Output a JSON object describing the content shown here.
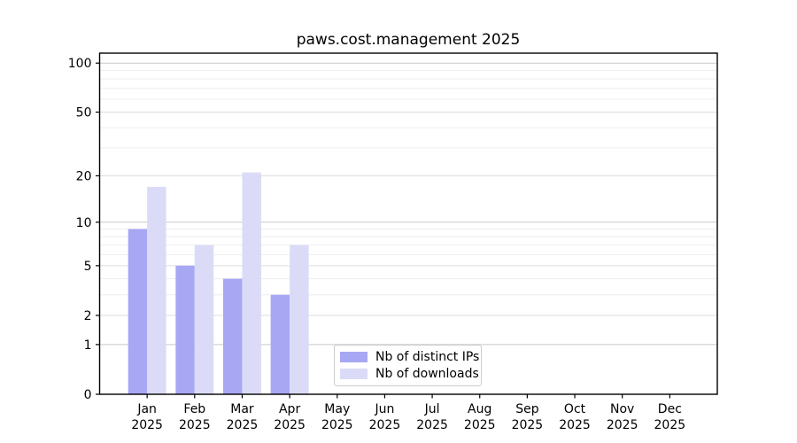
{
  "chart_data": {
    "type": "bar",
    "title": "paws.cost.management 2025",
    "categories": [
      "Jan",
      "Feb",
      "Mar",
      "Apr",
      "May",
      "Jun",
      "Jul",
      "Aug",
      "Sep",
      "Oct",
      "Nov",
      "Dec"
    ],
    "year_label": "2025",
    "series": [
      {
        "name": "Nb of distinct IPs",
        "color": "#a7a7f4",
        "values": [
          9,
          5,
          4,
          3,
          0,
          0,
          0,
          0,
          0,
          0,
          0,
          0
        ]
      },
      {
        "name": "Nb of downloads",
        "color": "#dbdbf8",
        "values": [
          17,
          7,
          21,
          7,
          0,
          0,
          0,
          0,
          0,
          0,
          0,
          0
        ]
      }
    ],
    "y_scale": "log10(value+1)",
    "y_ticks": [
      0,
      1,
      2,
      5,
      10,
      20,
      50,
      100
    ],
    "y_max": 115,
    "xlabel": "",
    "ylabel": "",
    "grid": {
      "major": [
        1,
        10,
        100
      ],
      "mid": [
        2,
        5,
        20,
        50
      ],
      "minor": [
        3,
        4,
        6,
        7,
        8,
        9,
        30,
        40,
        60,
        70,
        80,
        90
      ]
    },
    "legend_position": "lower center"
  },
  "colors": {
    "background": "#ffffff",
    "spine": "#000000",
    "text": "#000000",
    "grid_major": "#c8c8c8",
    "grid_mid": "#dcdcdc",
    "grid_minor": "#ededed",
    "legend_border": "#cccccc"
  }
}
